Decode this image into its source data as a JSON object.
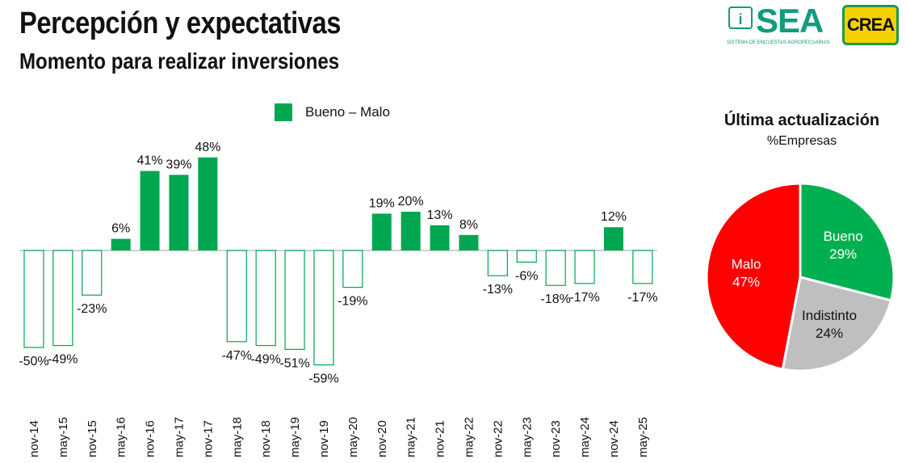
{
  "title": "Percepción y expectativas",
  "subtitle": "Momento para realizar inversiones",
  "logos": {
    "sea_text": "SEA",
    "sea_caption": "SISTEMA DE ENCUESTAS AGROPECUARIAS",
    "crea_text": "CREA"
  },
  "colors": {
    "positive": "#00a650",
    "negative_outline": "#00a650",
    "malo": "#ff0000",
    "bueno": "#00b050",
    "indistinto": "#bfbfbf"
  },
  "chart_data": [
    {
      "type": "bar",
      "legend": [
        "Bueno – Malo"
      ],
      "legend_position": "top",
      "categories": [
        "nov-14",
        "may-15",
        "nov-15",
        "may-16",
        "nov-16",
        "may-17",
        "nov-17",
        "may-18",
        "nov-18",
        "may-19",
        "nov-19",
        "may-20",
        "nov-20",
        "may-21",
        "nov-21",
        "may-22",
        "nov-22",
        "may-23",
        "nov-23",
        "may-24",
        "nov-24",
        "may-25"
      ],
      "values": [
        -50,
        -49,
        -23,
        6,
        41,
        39,
        48,
        -47,
        -49,
        -51,
        -59,
        -19,
        19,
        20,
        13,
        8,
        -13,
        -6,
        -18,
        -17,
        12,
        -17
      ],
      "value_labels": [
        "-50%",
        "-49%",
        "-23%",
        "6%",
        "41%",
        "39%",
        "48%",
        "-47%",
        "-49%",
        "-51%",
        "-59%",
        "-19%",
        "19%",
        "20%",
        "13%",
        "8%",
        "-13%",
        "-6%",
        "-18%",
        "-17%",
        "12%",
        "-17%"
      ],
      "grid": false
    },
    {
      "type": "pie",
      "title": "Última actualización",
      "subtitle": "%Empresas",
      "slices": [
        {
          "label": "Bueno",
          "value": 29,
          "value_label": "29%",
          "color": "#00b050",
          "text_color": "#ffffff"
        },
        {
          "label": "Indistinto",
          "value": 24,
          "value_label": "24%",
          "color": "#bfbfbf",
          "text_color": "#111111"
        },
        {
          "label": "Malo",
          "value": 47,
          "value_label": "47%",
          "color": "#ff0000",
          "text_color": "#ffffff"
        }
      ]
    }
  ]
}
